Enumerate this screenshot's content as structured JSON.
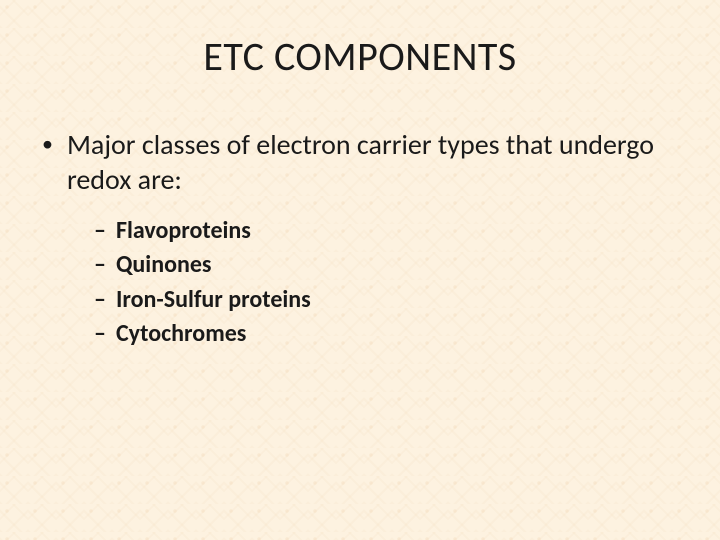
{
  "slide": {
    "title": "ETC COMPONENTS",
    "background_color": "#fdf2e0",
    "pattern_color": "#ead3b4",
    "title_fontsize": 40,
    "title_color": "#1a1a1a",
    "body_fontsize": 28,
    "body_color": "#1a1a1a",
    "sub_fontsize": 24,
    "sub_fontweight": 700,
    "bullets": [
      {
        "text": "Major classes of electron carrier types that undergo redox are:",
        "children": [
          "Flavoproteins",
          "Quinones",
          "Iron-Sulfur proteins",
          "Cytochromes"
        ]
      }
    ]
  }
}
